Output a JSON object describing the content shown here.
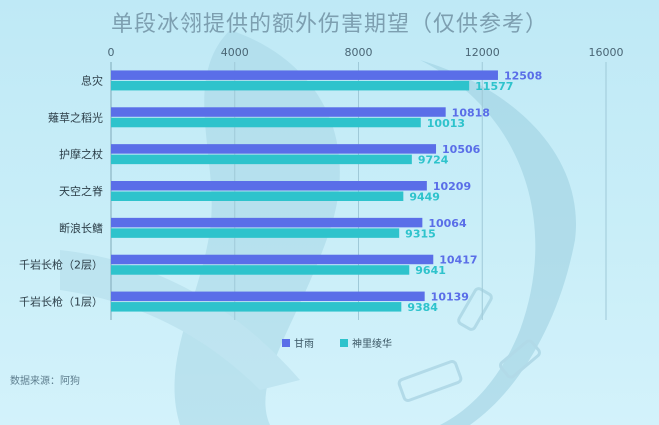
{
  "chart_data": {
    "type": "bar",
    "orientation": "horizontal",
    "title": "单段冰翎提供的额外伤害期望（仅供参考）",
    "categories": [
      "息灾",
      "薙草之稻光",
      "护摩之杖",
      "天空之脊",
      "断浪长鳍",
      "千岩长枪（2层）",
      "千岩长枪（1层）"
    ],
    "series": [
      {
        "name": "甘雨",
        "color": "#5a6ee8",
        "values": [
          12508,
          10818,
          10506,
          10209,
          10064,
          10417,
          10139
        ]
      },
      {
        "name": "神里绫华",
        "color": "#2ec3cc",
        "values": [
          11577,
          10013,
          9724,
          9449,
          9315,
          9641,
          9384
        ]
      }
    ],
    "xticks": [
      "0",
      "4000",
      "8000",
      "12000",
      "16000"
    ],
    "xlim": [
      0,
      16000
    ],
    "grid": true,
    "legend_position": "bottom-center",
    "source": "数据来源：阿狗"
  }
}
